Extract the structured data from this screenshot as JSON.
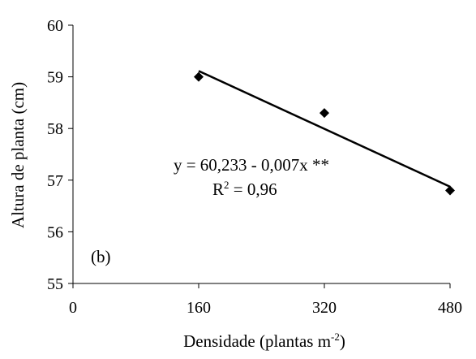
{
  "chart_data": {
    "type": "scatter",
    "xlabel": "Densidade (plantas m",
    "xlabel_sup": "-2",
    "xlabel_tail": ")",
    "ylabel": "Altura de planta (cm)",
    "xlim": [
      0,
      480
    ],
    "ylim": [
      55,
      60
    ],
    "x_ticks": [
      0,
      160,
      320,
      480
    ],
    "y_ticks": [
      55,
      56,
      57,
      58,
      59,
      60
    ],
    "x_tick_labels": [
      "0",
      "160",
      "320",
      "480"
    ],
    "y_tick_labels": [
      "55",
      "56",
      "57",
      "58",
      "59",
      "60"
    ],
    "grid": false,
    "series": [
      {
        "marker": "diamond",
        "color": "#000000",
        "points": [
          {
            "x": 160,
            "y": 59.0
          },
          {
            "x": 320,
            "y": 58.3
          },
          {
            "x": 480,
            "y": 56.8
          }
        ]
      }
    ],
    "trendline": {
      "intercept": 60.233,
      "slope": -0.007,
      "x_from": 160,
      "x_to": 480,
      "color": "#000000"
    },
    "equation_text": "y = 60,233 - 0,007x **",
    "r2_prefix": "R",
    "r2_sup": "2",
    "r2_suffix": " = 0,96",
    "panel_label": "(b)"
  }
}
